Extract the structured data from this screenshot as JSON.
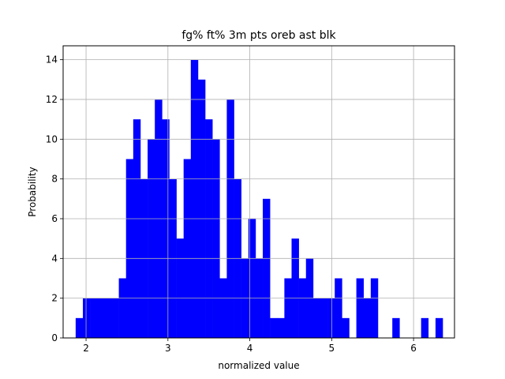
{
  "chart_data": {
    "type": "bar",
    "title": "fg% ft% 3m pts oreb ast blk",
    "xlabel": "normalized value",
    "ylabel": "Probability",
    "xlim": [
      1.72,
      6.5
    ],
    "ylim": [
      0,
      14.7
    ],
    "xticks": [
      2,
      3,
      4,
      5,
      6
    ],
    "yticks": [
      0,
      2,
      4,
      6,
      8,
      10,
      12,
      14
    ],
    "grid": true,
    "bar_color": "#0000ff",
    "bin_start": 1.873,
    "bin_width": 0.0879,
    "values": [
      1,
      2,
      2,
      2,
      2,
      2,
      3,
      9,
      11,
      8,
      10,
      12,
      11,
      8,
      5,
      9,
      14,
      13,
      11,
      10,
      3,
      12,
      8,
      4,
      6,
      4,
      7,
      1,
      1,
      3,
      5,
      3,
      4,
      2,
      2,
      2,
      3,
      1,
      0,
      3,
      2,
      3,
      0,
      0,
      1,
      0,
      0,
      0,
      1,
      0,
      1
    ]
  }
}
